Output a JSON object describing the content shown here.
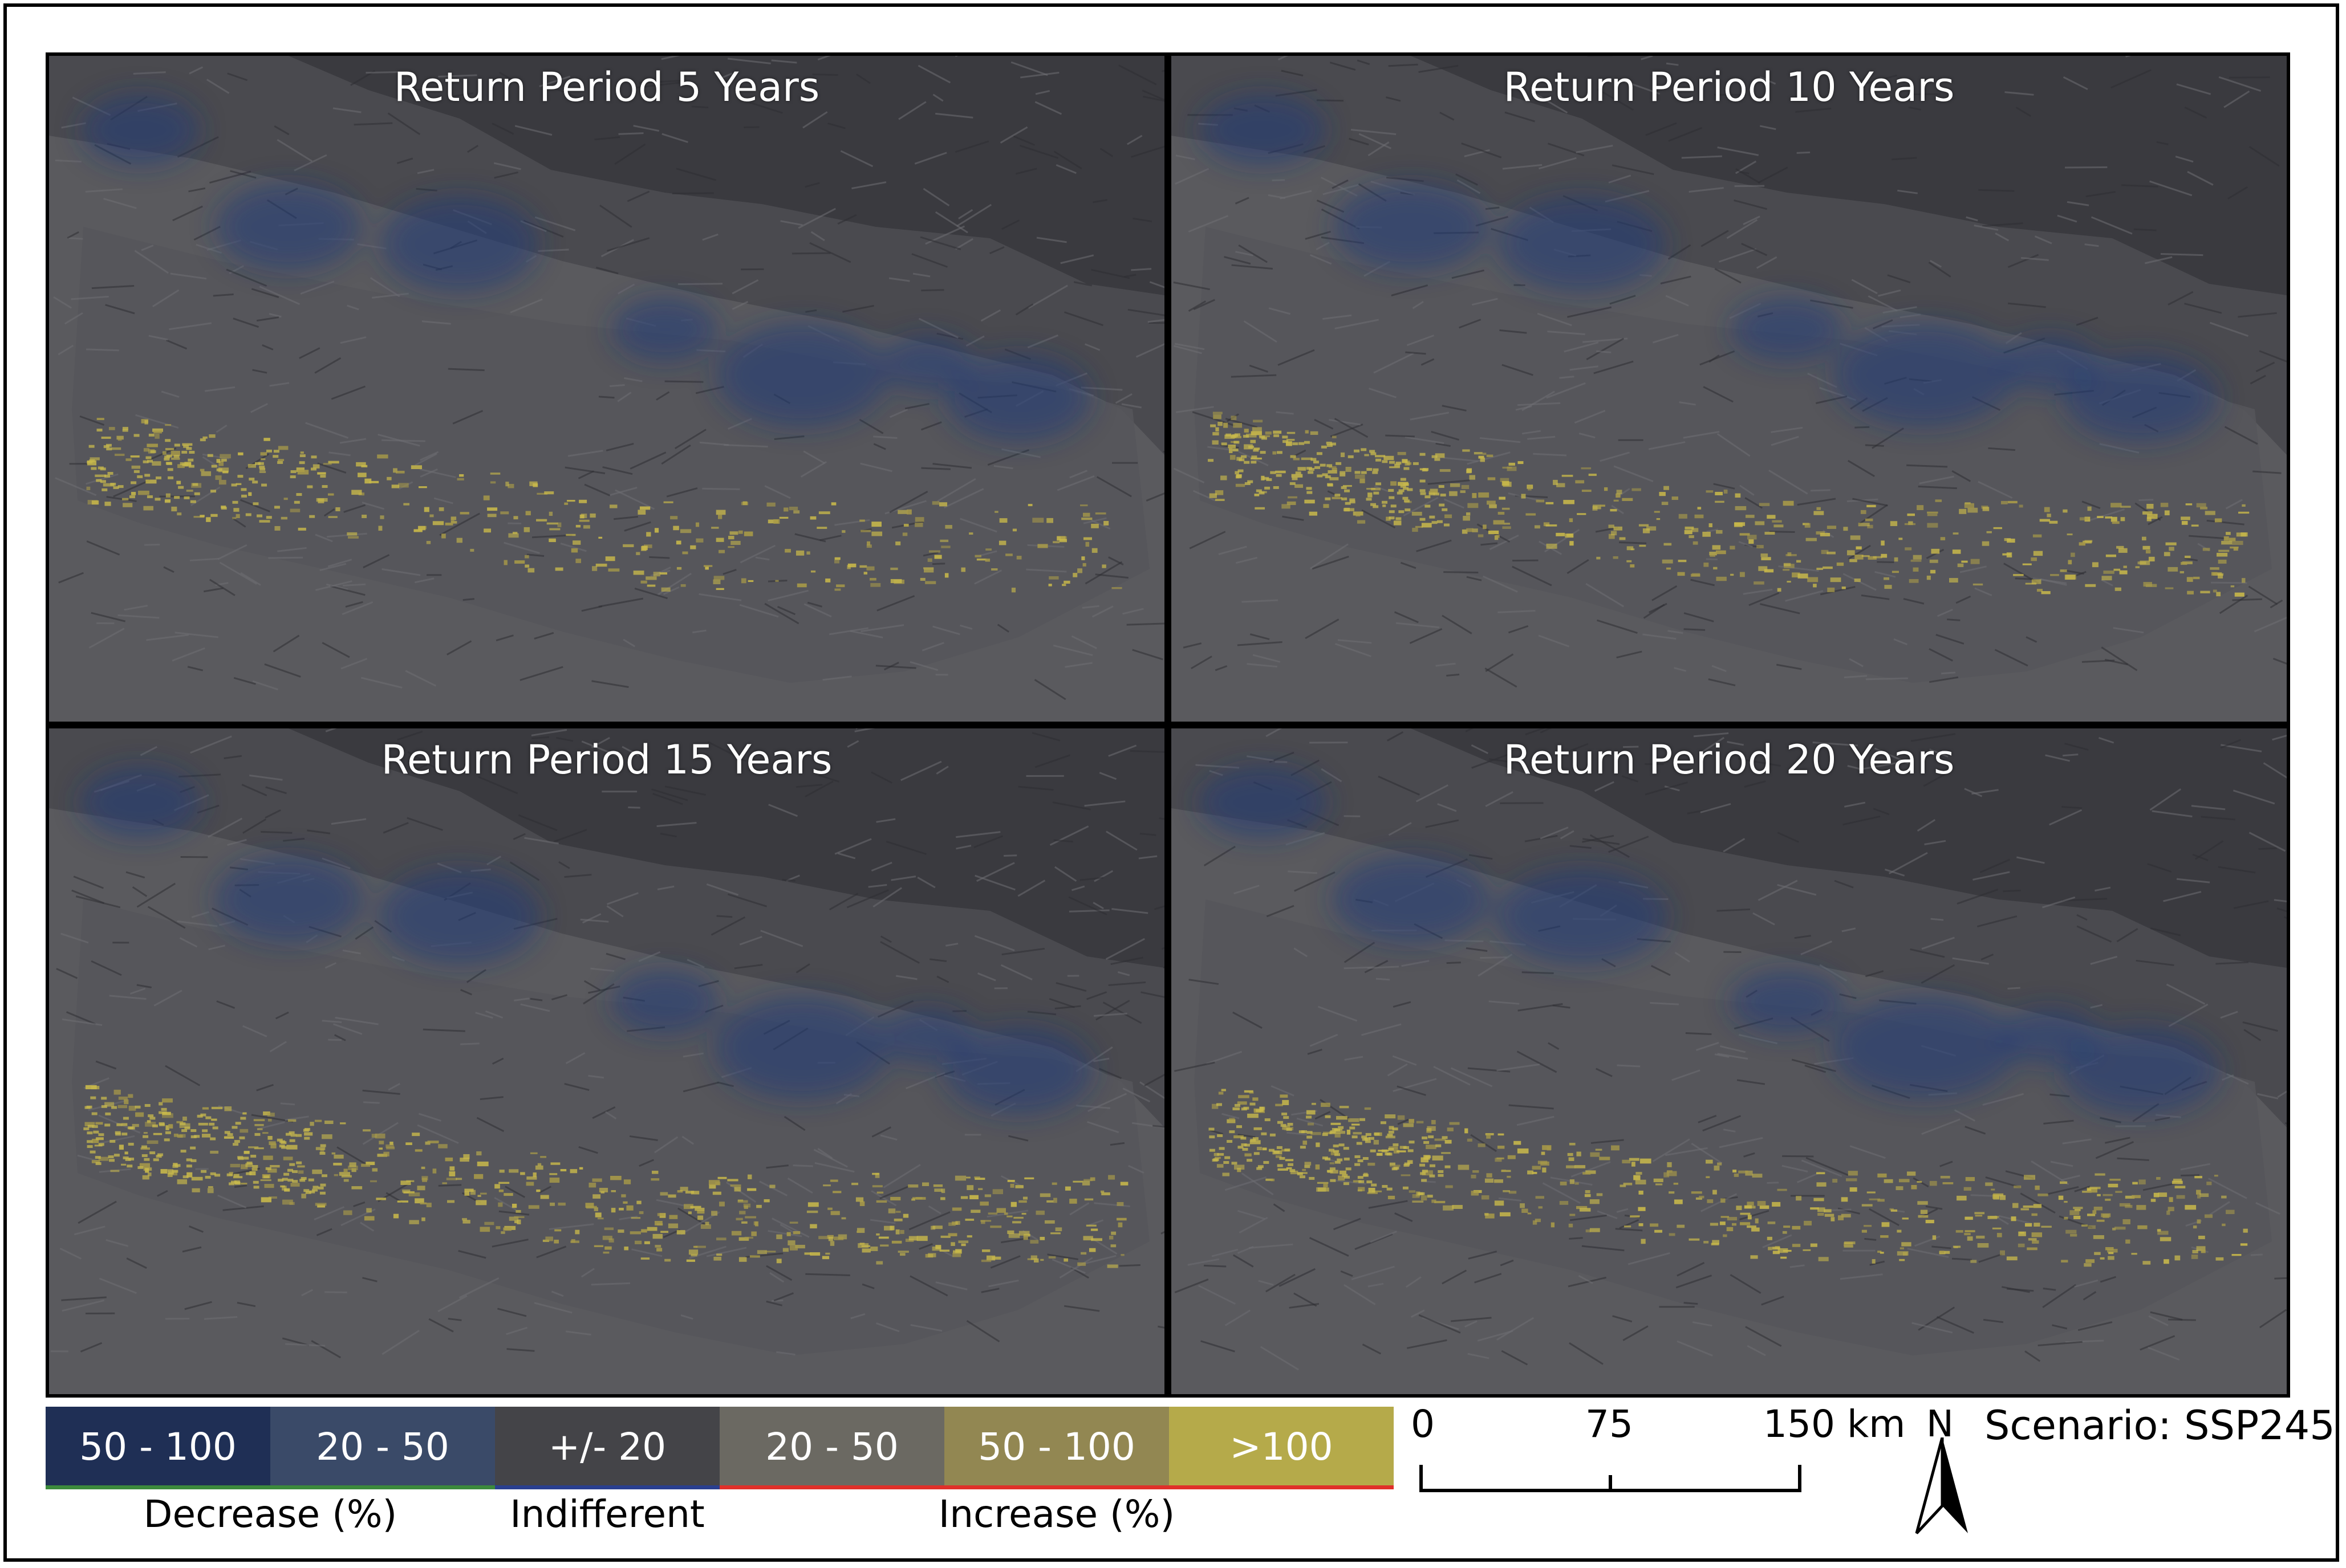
{
  "panels": [
    {
      "title": "Return Period 5 Years",
      "wet": 0.55,
      "dry": 0.7
    },
    {
      "title": "Return Period 10 Years",
      "wet": 0.75,
      "dry": 0.85
    },
    {
      "title": "Return Period 15 Years",
      "wet": 0.85,
      "dry": 0.75
    },
    {
      "title": "Return Period 20 Years",
      "wet": 0.8,
      "dry": 0.9
    }
  ],
  "legend": {
    "classes": [
      {
        "label": "50 - 100",
        "color": "#1f2f55"
      },
      {
        "label": "20 - 50",
        "color": "#3a4a68"
      },
      {
        "label": "+/- 20",
        "color": "#444448"
      },
      {
        "label": "20 - 50",
        "color": "#6b6962"
      },
      {
        "label": "50 - 100",
        "color": "#928752"
      },
      {
        "label": ">100",
        "color": "#b5aa4a"
      }
    ],
    "groups": {
      "decrease": "Decrease (%)",
      "indifferent": "Indifferent",
      "increase": "Increase (%)"
    },
    "group_colors": {
      "decrease": "#3c8a3c",
      "indifferent": "#2a3f8f",
      "increase": "#e0302a"
    }
  },
  "scale": {
    "labels": [
      "0",
      "75",
      "150 km"
    ]
  },
  "north_label": "N",
  "scenario": "Scenario: SSP245"
}
